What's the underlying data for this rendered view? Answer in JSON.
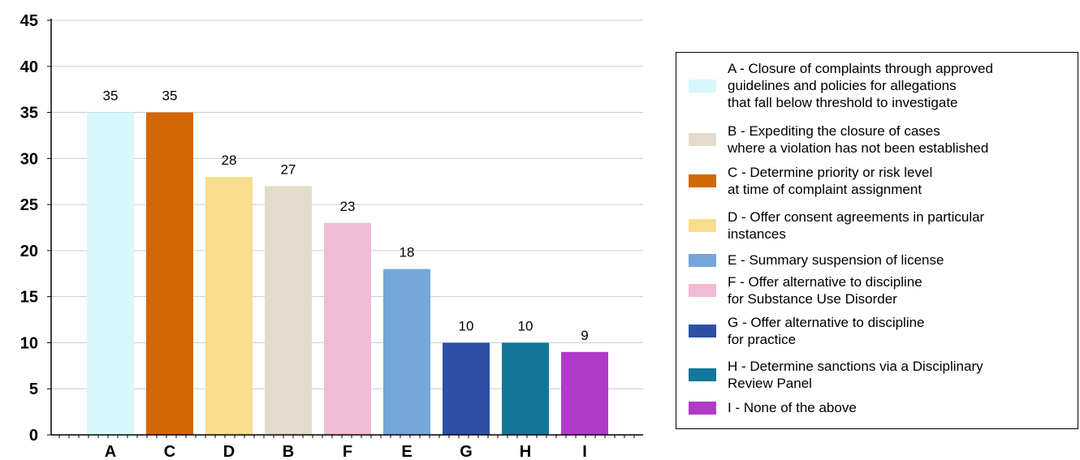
{
  "chart_data": {
    "type": "bar",
    "categories": [
      "A",
      "C",
      "D",
      "B",
      "F",
      "E",
      "G",
      "H",
      "I"
    ],
    "values": [
      35,
      35,
      28,
      27,
      23,
      18,
      10,
      10,
      9
    ],
    "data_labels": [
      "35",
      "35",
      "28",
      "27",
      "23",
      "18",
      "10",
      "10",
      "9"
    ],
    "colors": [
      "#d6f8fb",
      "#d26804",
      "#f8de8c",
      "#e4dccb",
      "#f1bbd3",
      "#74a6da",
      "#2c50a6",
      "#13779a",
      "#b03bc9"
    ],
    "ylim": [
      0,
      45
    ],
    "yticks": [
      "0",
      "5",
      "10",
      "15",
      "20",
      "25",
      "30",
      "35",
      "40",
      "45"
    ],
    "grid": true,
    "legend_placement": "right",
    "title": "",
    "xlabel": "",
    "ylabel": ""
  },
  "legend": {
    "items": [
      {
        "label": "A - Closure of complaints through approved\nguidelines and policies for allegations\nthat fall below threshold to investigate",
        "color": "#d6f8fb"
      },
      {
        "label": "B - Expediting the closure of cases\nwhere a violation has not been established",
        "color": "#e4dccb"
      },
      {
        "label": "C - Determine priority or risk level\nat time of complaint assignment",
        "color": "#d26804"
      },
      {
        "label": "D - Offer consent agreements in particular\ninstances",
        "color": "#f8de8c"
      },
      {
        "label": "E - Summary suspension of license",
        "color": "#74a6da"
      },
      {
        "label": "F - Offer alternative to discipline\nfor Substance Use Disorder",
        "color": "#f1bbd3"
      },
      {
        "label": "G - Offer alternative to discipline\nfor practice",
        "color": "#2c50a6"
      },
      {
        "label": "H - Determine sanctions via a Disciplinary\nReview Panel",
        "color": "#13779a"
      },
      {
        "label": "I - None of the above",
        "color": "#b03bc9"
      }
    ]
  }
}
